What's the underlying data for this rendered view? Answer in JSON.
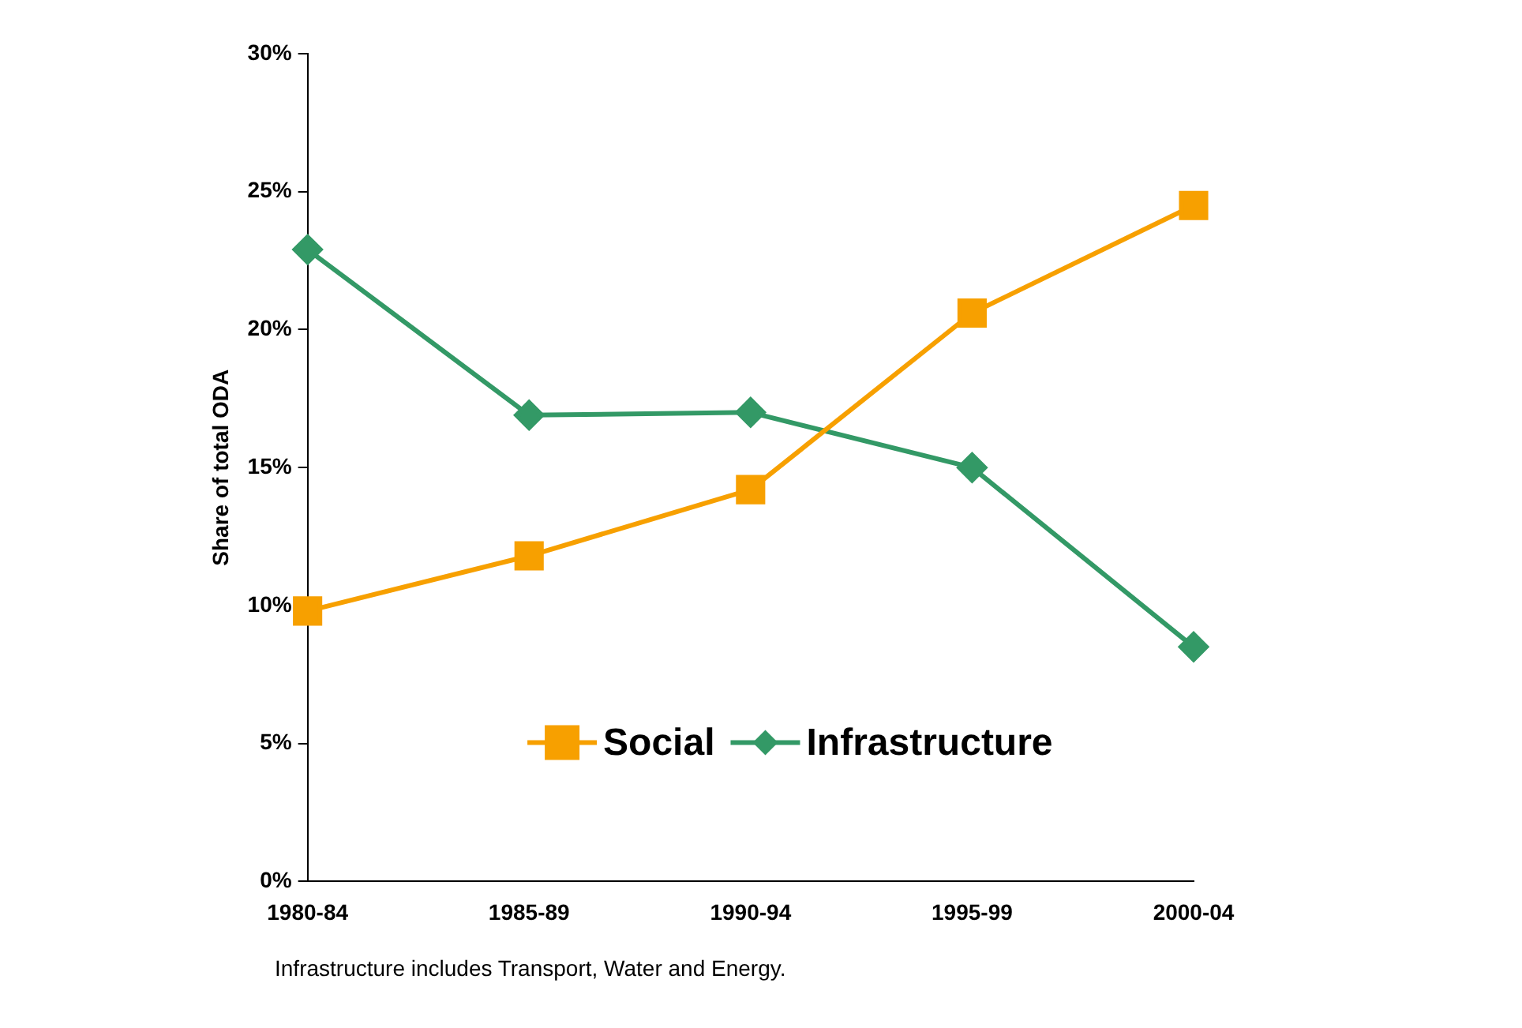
{
  "chart_data": {
    "type": "line",
    "ylabel": "Share of total ODA",
    "categories": [
      "1980-84",
      "1985-89",
      "1990-94",
      "1995-99",
      "2000-04"
    ],
    "series": [
      {
        "name": "Social",
        "color": "#f7a000",
        "marker": "square",
        "values": [
          9.8,
          11.8,
          14.2,
          20.6,
          24.5
        ]
      },
      {
        "name": "Infrastructure",
        "color": "#339966",
        "marker": "diamond",
        "values": [
          22.9,
          16.9,
          17.0,
          15.0,
          8.5
        ]
      }
    ],
    "ylim": [
      0,
      30
    ],
    "yticks": [
      {
        "value": 0,
        "label": "0%"
      },
      {
        "value": 5,
        "label": "5%"
      },
      {
        "value": 10,
        "label": "10%"
      },
      {
        "value": 15,
        "label": "15%"
      },
      {
        "value": 20,
        "label": "20%"
      },
      {
        "value": 25,
        "label": "25%"
      },
      {
        "value": 30,
        "label": "30%"
      }
    ],
    "grid": false,
    "legend": "bottom",
    "line_style": "solid",
    "annotations": [
      "Infrastructure includes Transport, Water and Energy."
    ]
  }
}
